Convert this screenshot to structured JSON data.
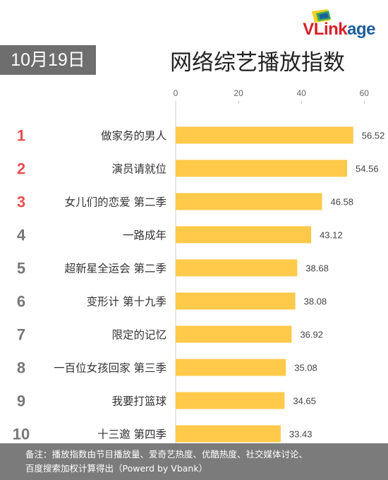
{
  "brand": {
    "logo_text_main": "VLink",
    "logo_text_accent": "age",
    "color_main": "#d61f26",
    "color_accent": "#1c5e9e"
  },
  "date": "10月19日",
  "title": "网络综艺播放指数",
  "footer": {
    "line1": "备注：播放指数由节目播放量、爱奇艺热度、优酷热度、社交媒体讨论、",
    "line2": "百度搜索加权计算得出（Powerd by Vbank）"
  },
  "colors": {
    "bar": "#ffc94a",
    "top_rank": "#ea4e53",
    "other_rank": "#777777"
  },
  "chart_data": {
    "type": "bar",
    "orientation": "horizontal",
    "title": "网络综艺播放指数",
    "ranks": [
      "1",
      "2",
      "3",
      "4",
      "5",
      "6",
      "7",
      "8",
      "9",
      "10"
    ],
    "categories": [
      "做家务的男人",
      "演员请就位",
      "女儿们的恋爱 第二季",
      "一路成年",
      "超新星全运会 第二季",
      "变形计 第十九季",
      "限定的记忆",
      "一百位女孩回家 第三季",
      "我要打篮球",
      "十三邀 第四季"
    ],
    "values": [
      56.52,
      54.56,
      46.58,
      43.12,
      38.68,
      38.08,
      36.92,
      35.08,
      34.65,
      33.43
    ],
    "xlim": [
      0,
      66
    ],
    "xticks": [
      0,
      20,
      40,
      60
    ],
    "axis_position": "top",
    "grid": false,
    "legend": "none"
  }
}
